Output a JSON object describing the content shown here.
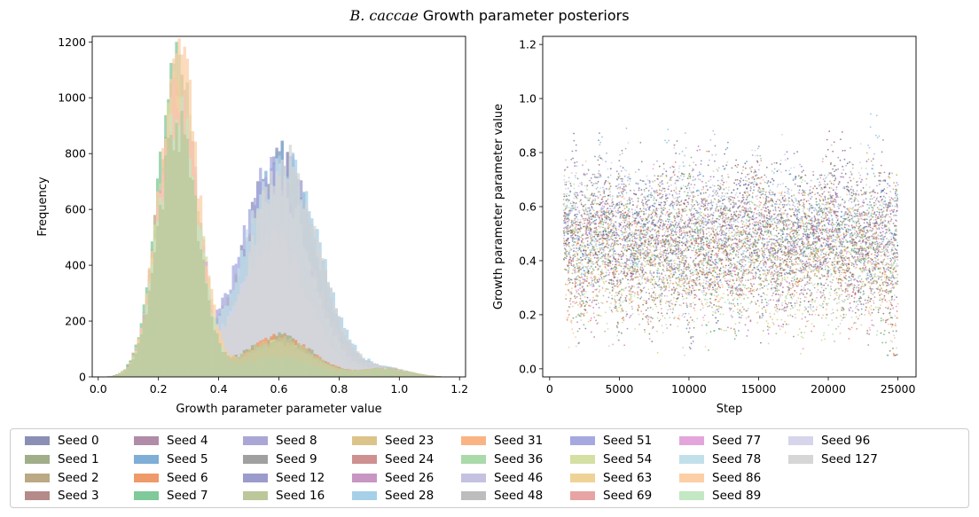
{
  "figure": {
    "title_italic": "B. caccae",
    "title_rest": " Growth parameter posteriors"
  },
  "chart_data": [
    {
      "type": "histogram",
      "xlabel": "Growth parameter parameter value",
      "ylabel": "Frequency",
      "xlim": [
        -0.02,
        1.22
      ],
      "ylim": [
        0,
        1220
      ],
      "xticks": [
        "0.0",
        "0.2",
        "0.4",
        "0.6",
        "0.8",
        "1.0",
        "1.2"
      ],
      "yticks": [
        "0",
        "200",
        "400",
        "600",
        "800",
        "1000",
        "1200"
      ],
      "xtick_values": [
        0,
        0.2,
        0.4,
        0.6,
        0.8,
        1.0,
        1.2
      ],
      "ytick_values": [
        0,
        200,
        400,
        600,
        800,
        1000,
        1200
      ],
      "peaks": {
        "low_mode_x": 0.28,
        "low_mode_max_frequency": 1160,
        "high_mode_x": 0.6,
        "high_mode_max_frequency": 790,
        "support": [
          0.03,
          1.13
        ]
      }
    },
    {
      "type": "scatter",
      "xlabel": "Step",
      "ylabel": "Growth parameter parameter value",
      "xlim": [
        -500,
        26300
      ],
      "ylim": [
        -0.03,
        1.23
      ],
      "xticks": [
        "0",
        "5000",
        "10000",
        "15000",
        "20000",
        "25000"
      ],
      "yticks": [
        "0.0",
        "0.2",
        "0.4",
        "0.6",
        "0.8",
        "1.0",
        "1.2"
      ],
      "xtick_values": [
        0,
        5000,
        10000,
        15000,
        20000,
        25000
      ],
      "ytick_values": [
        0,
        0.2,
        0.4,
        0.6,
        0.8,
        1.0,
        1.2
      ],
      "step_range": [
        1000,
        25000
      ],
      "value_range": [
        0.05,
        1.16
      ]
    }
  ],
  "legend": {
    "placement": "bottom",
    "columns": 9,
    "items": [
      {
        "label": "Seed 0",
        "color": "#8b8fb5"
      },
      {
        "label": "Seed 1",
        "color": "#a0ae8a"
      },
      {
        "label": "Seed 2",
        "color": "#bba884"
      },
      {
        "label": "Seed 3",
        "color": "#b58a8a"
      },
      {
        "label": "Seed 4",
        "color": "#b08ca8"
      },
      {
        "label": "Seed 5",
        "color": "#7faed6"
      },
      {
        "label": "Seed 6",
        "color": "#ef9a6a"
      },
      {
        "label": "Seed 7",
        "color": "#7fc99b"
      },
      {
        "label": "Seed 8",
        "color": "#aaa6d6"
      },
      {
        "label": "Seed 9",
        "color": "#a0a0a0"
      },
      {
        "label": "Seed 12",
        "color": "#9b9bcc"
      },
      {
        "label": "Seed 16",
        "color": "#bcc79a"
      },
      {
        "label": "Seed 23",
        "color": "#dcc389"
      },
      {
        "label": "Seed 24",
        "color": "#cf9090"
      },
      {
        "label": "Seed 26",
        "color": "#c896c3"
      },
      {
        "label": "Seed 28",
        "color": "#a6d0e8"
      },
      {
        "label": "Seed 31",
        "color": "#fab483"
      },
      {
        "label": "Seed 36",
        "color": "#aad9aa"
      },
      {
        "label": "Seed 46",
        "color": "#c4c2e0"
      },
      {
        "label": "Seed 48",
        "color": "#bdbdbd"
      },
      {
        "label": "Seed 51",
        "color": "#a5a9e0"
      },
      {
        "label": "Seed 54",
        "color": "#d4e0a3"
      },
      {
        "label": "Seed 63",
        "color": "#efd296"
      },
      {
        "label": "Seed 69",
        "color": "#e8a3a3"
      },
      {
        "label": "Seed 77",
        "color": "#e3a5db"
      },
      {
        "label": "Seed 78",
        "color": "#c2e0ea"
      },
      {
        "label": "Seed 86",
        "color": "#fccfa6"
      },
      {
        "label": "Seed 89",
        "color": "#c3e8c3"
      },
      {
        "label": "Seed 96",
        "color": "#d6d5ec"
      },
      {
        "label": "Seed 127",
        "color": "#d6d6d6"
      }
    ]
  }
}
